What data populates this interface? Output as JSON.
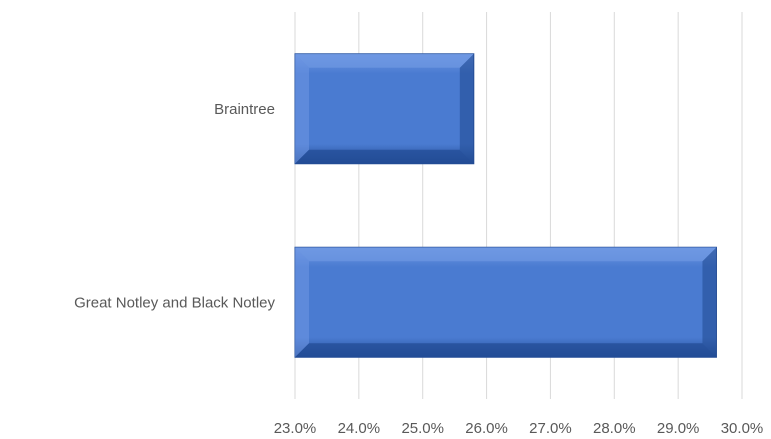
{
  "chart_data": {
    "type": "bar",
    "orientation": "horizontal",
    "categories": [
      "Braintree",
      "Great Notley and Black Notley"
    ],
    "values": [
      25.8,
      29.6
    ],
    "xlim": [
      23.0,
      30.0
    ],
    "xticks": [
      23.0,
      24.0,
      25.0,
      26.0,
      27.0,
      28.0,
      29.0,
      30.0
    ],
    "xtick_labels": [
      "23.0%",
      "24.0%",
      "25.0%",
      "26.0%",
      "27.0%",
      "28.0%",
      "29.0%",
      "30.0%"
    ],
    "value_unit": "%",
    "title": "",
    "xlabel": "",
    "ylabel": "",
    "grid": "vertical",
    "legend": "none",
    "colors": {
      "bar_fill": "#4a7bd1",
      "bar_light": "#6f98e3",
      "bar_dark": "#234c95",
      "gridline": "#d9d9d9",
      "text": "#595959"
    }
  }
}
